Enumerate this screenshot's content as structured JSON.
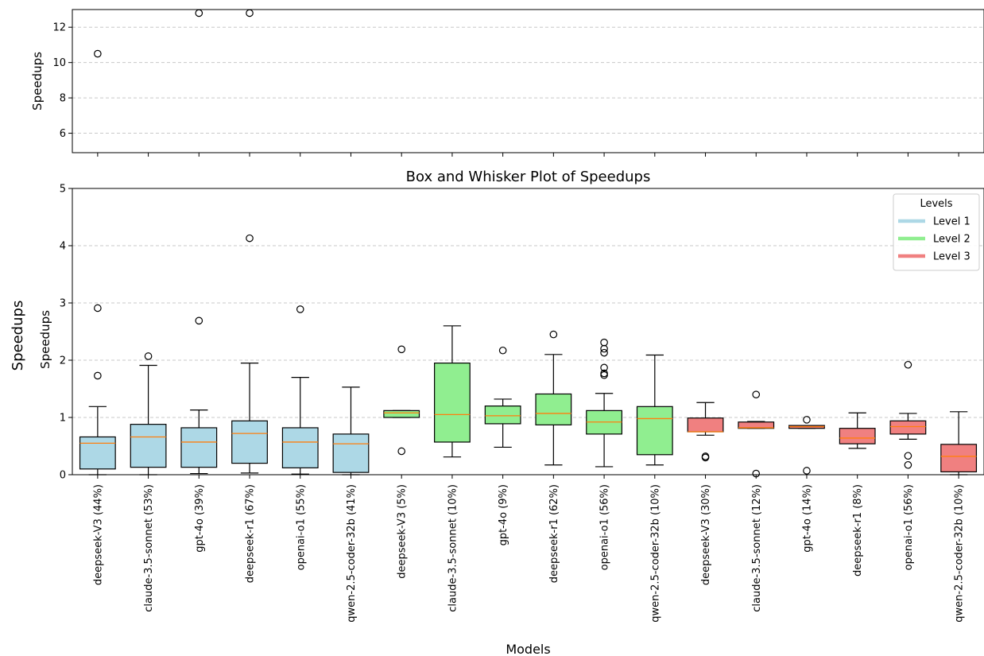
{
  "chart_data": {
    "type": "box",
    "title": "Box and Whisker Plot of Speedups",
    "xlabel": "Models",
    "ylabel": "Speedups",
    "figure_ylabel": "Speedups",
    "upper_panel": {
      "ylabel": "Speedups",
      "ylim": [
        4.9,
        13.0
      ],
      "yticks": [
        6,
        8,
        10,
        12
      ],
      "grid": "y, dashed"
    },
    "lower_panel": {
      "ylabel": "Speedups",
      "ylim": [
        0,
        5
      ],
      "yticks": [
        0,
        1,
        2,
        3,
        4,
        5
      ],
      "grid": "y, dashed"
    },
    "legend": {
      "title": "Levels",
      "placement": "top-right",
      "entries": [
        {
          "label": "Level 1",
          "color": "#add8e6"
        },
        {
          "label": "Level 2",
          "color": "#90ee90"
        },
        {
          "label": "Level 3",
          "color": "#f08080"
        }
      ]
    },
    "median_color": "#ff7f0e",
    "boxes": [
      {
        "label": "deepseek-V3 (44%)",
        "level": 1,
        "whislo": 0.0,
        "q1": 0.1,
        "med": 0.55,
        "q3": 0.66,
        "whishi": 1.19,
        "fliers": [
          1.73,
          2.91,
          10.5
        ]
      },
      {
        "label": "claude-3.5-sonnet (53%)",
        "level": 1,
        "whislo": 0.0,
        "q1": 0.13,
        "med": 0.66,
        "q3": 0.88,
        "whishi": 1.91,
        "fliers": [
          2.07
        ]
      },
      {
        "label": "gpt-4o (39%)",
        "level": 1,
        "whislo": 0.02,
        "q1": 0.13,
        "med": 0.57,
        "q3": 0.82,
        "whishi": 1.13,
        "fliers": [
          2.69,
          12.8
        ]
      },
      {
        "label": "deepseek-r1 (67%)",
        "level": 1,
        "whislo": 0.03,
        "q1": 0.2,
        "med": 0.72,
        "q3": 0.94,
        "whishi": 1.95,
        "fliers": [
          4.13,
          12.8
        ]
      },
      {
        "label": "openai-o1 (55%)",
        "level": 1,
        "whislo": 0.01,
        "q1": 0.12,
        "med": 0.57,
        "q3": 0.82,
        "whishi": 1.7,
        "fliers": [
          2.89
        ]
      },
      {
        "label": "qwen-2.5-coder-32b (41%)",
        "level": 1,
        "whislo": 0.0,
        "q1": 0.04,
        "med": 0.54,
        "q3": 0.71,
        "whishi": 1.53,
        "fliers": []
      },
      {
        "label": "deepseek-V3 (5%)",
        "level": 2,
        "whislo": 1.0,
        "q1": 1.0,
        "med": 1.08,
        "q3": 1.12,
        "whishi": 1.12,
        "fliers": [
          0.41,
          2.19
        ]
      },
      {
        "label": "claude-3.5-sonnet (10%)",
        "level": 2,
        "whislo": 0.31,
        "q1": 0.57,
        "med": 1.05,
        "q3": 1.95,
        "whishi": 2.6,
        "fliers": []
      },
      {
        "label": "gpt-4o (9%)",
        "level": 2,
        "whislo": 0.48,
        "q1": 0.89,
        "med": 1.03,
        "q3": 1.2,
        "whishi": 1.32,
        "fliers": [
          2.17
        ]
      },
      {
        "label": "deepseek-r1 (62%)",
        "level": 2,
        "whislo": 0.17,
        "q1": 0.87,
        "med": 1.07,
        "q3": 1.41,
        "whishi": 2.1,
        "fliers": [
          2.45
        ]
      },
      {
        "label": "openai-o1 (56%)",
        "level": 2,
        "whislo": 0.14,
        "q1": 0.71,
        "med": 0.92,
        "q3": 1.12,
        "whishi": 1.42,
        "fliers": [
          1.74,
          1.77,
          1.87,
          2.13,
          2.2,
          2.31
        ]
      },
      {
        "label": "qwen-2.5-coder-32b (10%)",
        "level": 2,
        "whislo": 0.17,
        "q1": 0.35,
        "med": 0.98,
        "q3": 1.19,
        "whishi": 2.09,
        "fliers": []
      },
      {
        "label": "deepseek-V3 (30%)",
        "level": 3,
        "whislo": 0.69,
        "q1": 0.75,
        "med": 0.75,
        "q3": 0.99,
        "whishi": 1.26,
        "fliers": [
          0.3,
          0.32
        ]
      },
      {
        "label": "claude-3.5-sonnet (12%)",
        "level": 3,
        "whislo": 0.81,
        "q1": 0.81,
        "med": 0.82,
        "q3": 0.92,
        "whishi": 0.93,
        "fliers": [
          0.02,
          1.4
        ]
      },
      {
        "label": "gpt-4o (14%)",
        "level": 3,
        "whislo": 0.81,
        "q1": 0.81,
        "med": 0.84,
        "q3": 0.86,
        "whishi": 0.86,
        "fliers": [
          0.07,
          0.96
        ]
      },
      {
        "label": "deepseek-r1 (8%)",
        "level": 3,
        "whislo": 0.46,
        "q1": 0.54,
        "med": 0.64,
        "q3": 0.81,
        "whishi": 1.08,
        "fliers": []
      },
      {
        "label": "openai-o1 (56%)",
        "level": 3,
        "whislo": 0.62,
        "q1": 0.71,
        "med": 0.84,
        "q3": 0.94,
        "whishi": 1.07,
        "fliers": [
          0.17,
          0.33,
          1.92
        ]
      },
      {
        "label": "qwen-2.5-coder-32b (10%)",
        "level": 3,
        "whislo": 0.0,
        "q1": 0.05,
        "med": 0.32,
        "q3": 0.53,
        "whishi": 1.1,
        "fliers": []
      }
    ]
  }
}
